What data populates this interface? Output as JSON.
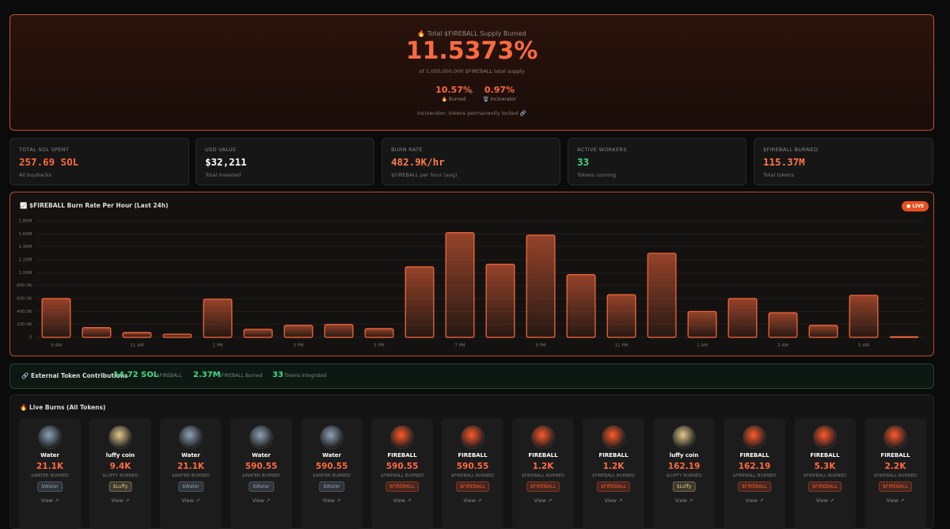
{
  "hero": {
    "title": "🔥 Total $FIREBALL Supply Burned",
    "percent": "11.5373%",
    "supply": "of 1,000,000,000 $FIREBALL total supply",
    "burned": {
      "value": "10.57%",
      "label": "🔥 Burned"
    },
    "plus": "+",
    "incinerator": {
      "value": "0.97%",
      "label": "🗑️ Incinerator"
    },
    "note": "Incinerator: tokens permanently locked 🔗"
  },
  "stats": [
    {
      "label": "TOTAL SOL SPENT",
      "value": "257.69 SOL",
      "sub": "All buybacks",
      "color": "#ff6a3d"
    },
    {
      "label": "USD VALUE",
      "value": "$32,211",
      "sub": "Total invested",
      "color": "#ffffff"
    },
    {
      "label": "BURN RATE",
      "value": "482.9K/hr",
      "sub": "$FIREBALL per hour (avg)",
      "color": "#ff7a45"
    },
    {
      "label": "ACTIVE WORKERS",
      "value": "33",
      "sub": "Tokens running",
      "color": "#3ddc84"
    },
    {
      "label": "$FIREBALL BURNED",
      "value": "115.37M",
      "sub": "Total tokens",
      "color": "#ff7a45"
    }
  ],
  "chart_data": {
    "type": "bar",
    "title": "📈 $FIREBALL Burn Rate Per Hour (Last 24h)",
    "annotation": "● LIVE",
    "color": "#ff6a3d",
    "grid": true,
    "categories": [
      "9 AM",
      null,
      "11 AM",
      null,
      "1 PM",
      null,
      "3 PM",
      null,
      "5 PM",
      null,
      "7 PM",
      null,
      "9 PM",
      null,
      "11 PM",
      null,
      "1 AM",
      null,
      "3 AM",
      null,
      "5 AM",
      null
    ],
    "values": [
      600000,
      150000,
      75000,
      50000,
      590000,
      125000,
      185000,
      200000,
      135000,
      1090000,
      1620000,
      1130000,
      1580000,
      970000,
      660000,
      1300000,
      400000,
      600000,
      380000,
      185000,
      650000,
      10000
    ],
    "ylim": [
      0,
      1800000
    ],
    "yticks": [
      0,
      {
        "value": 200000,
        "label": "200.0K"
      },
      {
        "value": 400000,
        "label": "400.0K"
      },
      {
        "value": 600000,
        "label": "600.0K"
      },
      {
        "value": 800000,
        "label": "800.0K"
      },
      {
        "value": 1000000,
        "label": "1.00M"
      },
      {
        "value": 1200000,
        "label": "1.20M"
      },
      {
        "value": 1400000,
        "label": "1.40M"
      },
      {
        "value": 1600000,
        "label": "1.60M"
      },
      {
        "value": 1800000,
        "label": "1.80M"
      }
    ]
  },
  "external": {
    "title": "🔗 External Token Contributions",
    "items": [
      {
        "value": "14.72 SOL",
        "label": "→ $FIREBALL"
      },
      {
        "value": "2.37M",
        "label": "$FIREBALL Burned"
      },
      {
        "value": "33",
        "label": "Tokens Integrated"
      }
    ]
  },
  "live": {
    "title": "🔥 Live Burns (All Tokens)",
    "cards": [
      {
        "name": "Water",
        "amount": "21.1K",
        "unit": "$WATER BURNED",
        "ticker": "$Water",
        "link": "View ↗",
        "color": "#8fa3b8"
      },
      {
        "name": "luffy coin",
        "amount": "9.4K",
        "unit": "$LUFFY BURNED",
        "ticker": "$Luffy",
        "link": "View ↗",
        "color": "#e2c98c"
      },
      {
        "name": "Water",
        "amount": "21.1K",
        "unit": "$WATER BURNED",
        "ticker": "$Water",
        "link": "View ↗",
        "color": "#8fa3b8"
      },
      {
        "name": "Water",
        "amount": "590.55",
        "unit": "$WATER BURNED",
        "ticker": "$Water",
        "link": "View ↗",
        "color": "#8fa3b8"
      },
      {
        "name": "Water",
        "amount": "590.55",
        "unit": "$WATER BURNED",
        "ticker": "$Water",
        "link": "View ↗",
        "color": "#8fa3b8"
      },
      {
        "name": "FIREBALL",
        "amount": "590.55",
        "unit": "$FIREBALL BURNED",
        "ticker": "$FIREBALL",
        "link": "View ↗",
        "color": "#ff5a2a"
      },
      {
        "name": "FIREBALL",
        "amount": "590.55",
        "unit": "$FIREBALL BURNED",
        "ticker": "$FIREBALL",
        "link": "View ↗",
        "color": "#ff5a2a"
      },
      {
        "name": "FIREBALL",
        "amount": "1.2K",
        "unit": "$FIREBALL BURNED",
        "ticker": "$FIREBALL",
        "link": "View ↗",
        "color": "#ff5a2a"
      },
      {
        "name": "FIREBALL",
        "amount": "1.2K",
        "unit": "$FIREBALL BURNED",
        "ticker": "$FIREBALL",
        "link": "View ↗",
        "color": "#ff5a2a"
      },
      {
        "name": "luffy coin",
        "amount": "162.19",
        "unit": "$LUFFY BURNED",
        "ticker": "$Luffy",
        "link": "View ↗",
        "color": "#e2c98c"
      },
      {
        "name": "FIREBALL",
        "amount": "162.19",
        "unit": "$FIREBALL BURNED",
        "ticker": "$FIREBALL",
        "link": "View ↗",
        "color": "#ff5a2a"
      },
      {
        "name": "FIREBALL",
        "amount": "5.3K",
        "unit": "$FIREBALL BURNED",
        "ticker": "$FIREBALL",
        "link": "View ↗",
        "color": "#ff5a2a"
      },
      {
        "name": "FIREBALL",
        "amount": "2.2K",
        "unit": "$FIREBALL BURNED",
        "ticker": "$FIREBALL",
        "link": "View ↗",
        "color": "#ff5a2a"
      }
    ]
  }
}
